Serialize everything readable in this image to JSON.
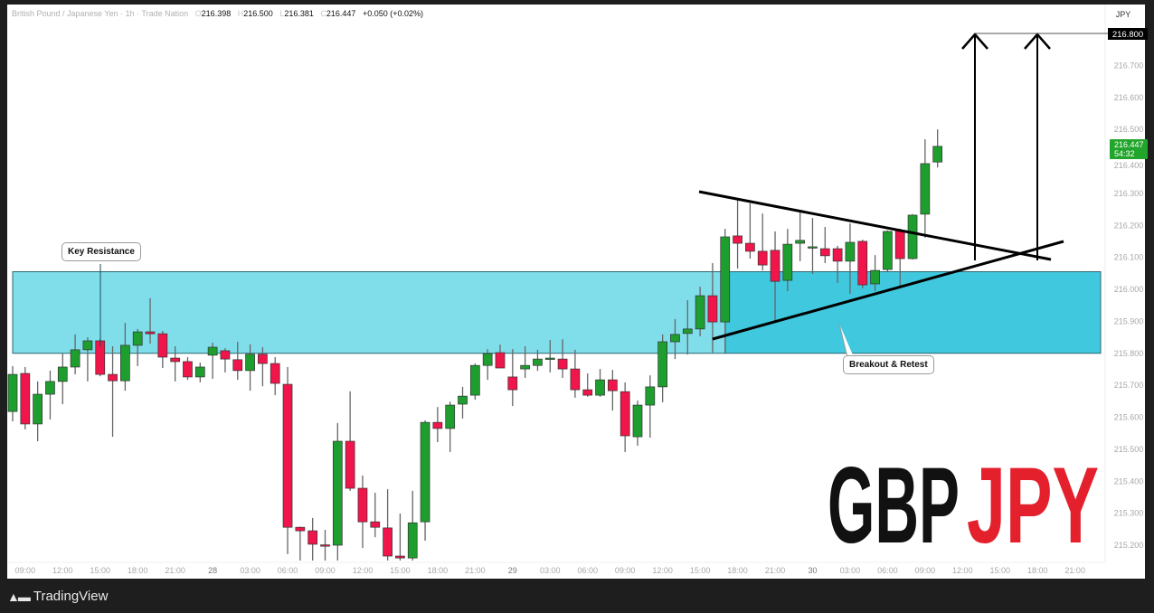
{
  "header": {
    "symbol_title": "British Pound / Japanese Yen · 1h · Trade Nation",
    "open_key": "O",
    "open": "216.398",
    "high_key": "H",
    "high": "216.500",
    "low_key": "L",
    "low": "216.381",
    "close_key": "C",
    "close": "216.447",
    "change": "+0.050 (+0.02%)"
  },
  "price_axis": {
    "currency": "JPY",
    "target_label": "216.800",
    "last_price_label": "216.447",
    "countdown": "54:32"
  },
  "annotations": {
    "key_resistance": "Key Resistance",
    "breakout_retest": "Breakout & Retest",
    "pair_base": "GBP",
    "pair_quote": "JPY"
  },
  "footer": {
    "brand": "TradingView",
    "logo_mark": "TV"
  },
  "colors": {
    "up": "#1e9e2e",
    "down": "#f0154a",
    "zone_light": "#80deea",
    "zone_dark": "#40c8de",
    "quote_red": "#e3202c",
    "last_price_bg": "#22a52b"
  },
  "chart_data": {
    "type": "candlestick",
    "interval": "1h",
    "ylim": [
      215.15,
      216.85
    ],
    "y_ticks": [
      "216.800",
      "216.700",
      "216.600",
      "216.500",
      "216.400",
      "216.300",
      "216.200",
      "216.100",
      "216.000",
      "215.900",
      "215.800",
      "215.700",
      "215.600",
      "215.500",
      "215.400",
      "215.300",
      "215.200"
    ],
    "x_ticks": [
      "09:00",
      "12:00",
      "15:00",
      "18:00",
      "21:00",
      "28",
      "03:00",
      "06:00",
      "09:00",
      "12:00",
      "15:00",
      "18:00",
      "21:00",
      "29",
      "03:00",
      "06:00",
      "09:00",
      "12:00",
      "15:00",
      "18:00",
      "21:00",
      "30",
      "03:00",
      "06:00",
      "09:00",
      "12:00",
      "15:00",
      "18:00",
      "21:00"
    ],
    "resistance_zone": [
      215.8,
      216.055
    ],
    "target": 216.8,
    "grid": false,
    "ohlc": [
      [
        215.618,
        215.76,
        215.587,
        215.734
      ],
      [
        215.737,
        215.757,
        215.562,
        215.579
      ],
      [
        215.579,
        215.712,
        215.525,
        215.672
      ],
      [
        215.672,
        215.746,
        215.593,
        215.712
      ],
      [
        215.712,
        215.799,
        215.641,
        215.757
      ],
      [
        215.757,
        215.859,
        215.734,
        215.811
      ],
      [
        215.811,
        215.85,
        215.712,
        215.839
      ],
      [
        215.839,
        215.845,
        215.728,
        215.734
      ],
      [
        215.734,
        215.822,
        215.539,
        215.714
      ],
      [
        215.714,
        215.895,
        215.683,
        215.825
      ],
      [
        215.825,
        215.876,
        215.76,
        215.867
      ],
      [
        215.867,
        215.972,
        215.83,
        215.861
      ],
      [
        215.861,
        215.87,
        215.754,
        215.788
      ],
      [
        215.785,
        215.822,
        215.712,
        215.774
      ],
      [
        215.774,
        215.788,
        215.717,
        215.726
      ],
      [
        215.726,
        215.771,
        215.709,
        215.757
      ],
      [
        215.794,
        215.833,
        215.72,
        215.819
      ],
      [
        215.808,
        215.816,
        215.74,
        215.782
      ],
      [
        215.78,
        215.836,
        215.717,
        215.746
      ],
      [
        215.746,
        215.828,
        215.683,
        215.797
      ],
      [
        215.797,
        215.819,
        215.697,
        215.768
      ],
      [
        215.768,
        215.788,
        215.669,
        215.706
      ],
      [
        215.703,
        215.757,
        215.172,
        215.256
      ],
      [
        215.256,
        215.258,
        215.152,
        215.245
      ],
      [
        215.245,
        215.285,
        215.152,
        215.203
      ],
      [
        215.201,
        215.248,
        215.152,
        215.2
      ],
      [
        215.2,
        215.582,
        215.152,
        215.525
      ],
      [
        215.525,
        215.681,
        215.37,
        215.378
      ],
      [
        215.378,
        215.418,
        215.191,
        215.273
      ],
      [
        215.273,
        215.364,
        215.225,
        215.256
      ],
      [
        215.254,
        215.375,
        215.152,
        215.166
      ],
      [
        215.166,
        215.299,
        215.152,
        215.16
      ],
      [
        215.16,
        215.37,
        215.152,
        215.27
      ],
      [
        215.273,
        215.59,
        215.214,
        215.584
      ],
      [
        215.584,
        215.632,
        215.522,
        215.565
      ],
      [
        215.565,
        215.649,
        215.491,
        215.638
      ],
      [
        215.641,
        215.695,
        215.596,
        215.666
      ],
      [
        215.669,
        215.768,
        215.655,
        215.762
      ],
      [
        215.762,
        215.813,
        215.717,
        215.799
      ],
      [
        215.802,
        215.827,
        215.754,
        215.754
      ],
      [
        215.726,
        215.813,
        215.635,
        215.686
      ],
      [
        215.751,
        215.822,
        215.723,
        215.762
      ],
      [
        215.762,
        215.811,
        215.745,
        215.782
      ],
      [
        215.785,
        215.842,
        215.74,
        215.785
      ],
      [
        215.782,
        215.844,
        215.723,
        215.751
      ],
      [
        215.751,
        215.811,
        215.661,
        215.686
      ],
      [
        215.686,
        215.737,
        215.664,
        215.669
      ],
      [
        215.669,
        215.751,
        215.664,
        215.717
      ],
      [
        215.717,
        215.748,
        215.621,
        215.683
      ],
      [
        215.68,
        215.709,
        215.491,
        215.542
      ],
      [
        215.539,
        215.652,
        215.511,
        215.638
      ],
      [
        215.638,
        215.731,
        215.536,
        215.695
      ],
      [
        215.695,
        215.859,
        215.647,
        215.836
      ],
      [
        215.836,
        215.907,
        215.782,
        215.859
      ],
      [
        215.862,
        215.966,
        215.796,
        215.876
      ],
      [
        215.876,
        216.008,
        215.853,
        215.98
      ],
      [
        215.98,
        216.082,
        215.802,
        215.898
      ],
      [
        215.898,
        216.189,
        215.802,
        216.164
      ],
      [
        216.167,
        216.28,
        216.065,
        216.144
      ],
      [
        216.144,
        216.269,
        216.096,
        216.119
      ],
      [
        216.119,
        216.237,
        216.059,
        216.076
      ],
      [
        216.122,
        216.181,
        215.901,
        216.025
      ],
      [
        216.028,
        216.189,
        215.994,
        216.141
      ],
      [
        216.144,
        216.24,
        216.088,
        216.153
      ],
      [
        216.133,
        216.223,
        216.048,
        216.133
      ],
      [
        216.127,
        216.195,
        216.082,
        216.105
      ],
      [
        216.127,
        216.136,
        216.02,
        216.088
      ],
      [
        216.088,
        216.206,
        215.986,
        216.147
      ],
      [
        216.15,
        216.155,
        216.003,
        216.014
      ],
      [
        216.017,
        216.107,
        215.994,
        216.059
      ],
      [
        216.062,
        216.184,
        216.056,
        216.181
      ],
      [
        216.184,
        216.189,
        216.008,
        216.096
      ],
      [
        216.096,
        216.235,
        216.093,
        216.232
      ],
      [
        216.235,
        216.469,
        216.161,
        216.393
      ],
      [
        216.398,
        216.5,
        216.381,
        216.447
      ]
    ]
  }
}
